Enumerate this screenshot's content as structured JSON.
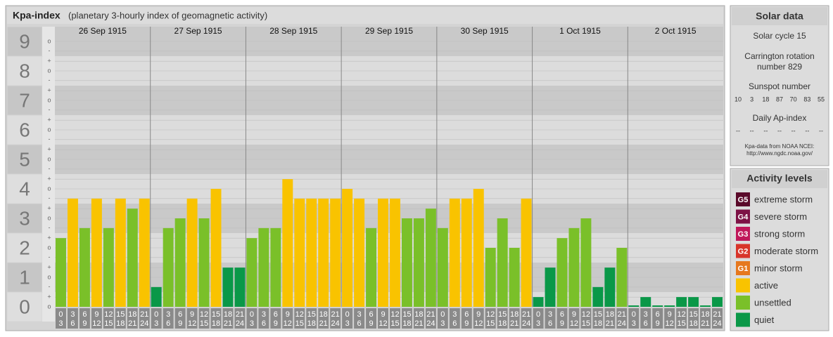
{
  "chart_data": {
    "type": "bar",
    "title": "Kpa-index",
    "subtitle": "(planetary 3-hourly index of geomagnetic activity)",
    "ylim": [
      0,
      9.5
    ],
    "yticks": [
      0,
      1,
      2,
      3,
      4,
      5,
      6,
      7,
      8,
      9
    ],
    "subticks": [
      {
        "value": 0,
        "label": "o"
      },
      {
        "value": 0.33,
        "label": "+"
      },
      {
        "value": 0.67,
        "label": "-"
      },
      {
        "value": 1,
        "label": "o"
      },
      {
        "value": 1.33,
        "label": "+"
      },
      {
        "value": 1.67,
        "label": "-"
      },
      {
        "value": 2,
        "label": "o"
      },
      {
        "value": 2.33,
        "label": "+"
      },
      {
        "value": 2.67,
        "label": "-"
      },
      {
        "value": 3,
        "label": "o"
      },
      {
        "value": 3.33,
        "label": "+"
      },
      {
        "value": 3.67,
        "label": "-"
      },
      {
        "value": 4,
        "label": "o"
      },
      {
        "value": 4.33,
        "label": "+"
      },
      {
        "value": 4.67,
        "label": "-"
      },
      {
        "value": 5,
        "label": "o"
      },
      {
        "value": 5.33,
        "label": "+"
      },
      {
        "value": 5.67,
        "label": "-"
      },
      {
        "value": 6,
        "label": "o"
      },
      {
        "value": 6.33,
        "label": "+"
      },
      {
        "value": 6.67,
        "label": "-"
      },
      {
        "value": 7,
        "label": "o"
      },
      {
        "value": 7.33,
        "label": "+"
      },
      {
        "value": 7.67,
        "label": "-"
      },
      {
        "value": 8,
        "label": "o"
      },
      {
        "value": 8.33,
        "label": "+"
      },
      {
        "value": 8.67,
        "label": "-"
      },
      {
        "value": 9,
        "label": "o"
      }
    ],
    "hour_bins": [
      0,
      3,
      6,
      9,
      12,
      15,
      18,
      21,
      24
    ],
    "grid": true,
    "days": [
      {
        "label": "26 Sep 1915",
        "values": [
          2.33,
          3.67,
          2.67,
          3.67,
          2.67,
          3.67,
          3.33,
          3.67
        ],
        "colors": [
          "#7ac029",
          "#f9c300",
          "#7ac029",
          "#f9c300",
          "#7ac029",
          "#f9c300",
          "#7ac029",
          "#f9c300"
        ]
      },
      {
        "label": "27 Sep 1915",
        "values": [
          0.67,
          2.67,
          3,
          3.67,
          3,
          4,
          1.33,
          1.33
        ],
        "colors": [
          "#0a9848",
          "#7ac029",
          "#7ac029",
          "#f9c300",
          "#7ac029",
          "#f9c300",
          "#0a9848",
          "#0a9848"
        ]
      },
      {
        "label": "28 Sep 1915",
        "values": [
          2.33,
          2.67,
          2.67,
          4.33,
          3.67,
          3.67,
          3.67,
          3.67
        ],
        "colors": [
          "#7ac029",
          "#7ac029",
          "#7ac029",
          "#f9c300",
          "#f9c300",
          "#f9c300",
          "#f9c300",
          "#f9c300"
        ]
      },
      {
        "label": "29 Sep 1915",
        "values": [
          4,
          3.67,
          2.67,
          3.67,
          3.67,
          3,
          3,
          3.33
        ],
        "colors": [
          "#f9c300",
          "#f9c300",
          "#7ac029",
          "#f9c300",
          "#f9c300",
          "#7ac029",
          "#7ac029",
          "#7ac029"
        ]
      },
      {
        "label": "30 Sep 1915",
        "values": [
          2.67,
          3.67,
          3.67,
          4,
          2,
          3,
          2,
          3.67
        ],
        "colors": [
          "#7ac029",
          "#f9c300",
          "#f9c300",
          "#f9c300",
          "#7ac029",
          "#7ac029",
          "#7ac029",
          "#f9c300"
        ]
      },
      {
        "label": "1 Oct 1915",
        "values": [
          0.33,
          1.33,
          2.33,
          2.67,
          3,
          0.67,
          1.33,
          2
        ],
        "colors": [
          "#0a9848",
          "#0a9848",
          "#7ac029",
          "#7ac029",
          "#7ac029",
          "#0a9848",
          "#0a9848",
          "#7ac029"
        ]
      },
      {
        "label": "2 Oct 1915",
        "values": [
          0,
          0.33,
          0,
          0,
          0.33,
          0.33,
          0,
          0.33
        ],
        "colors": [
          "#0a9848",
          "#0a9848",
          "#0a9848",
          "#0a9848",
          "#0a9848",
          "#0a9848",
          "#0a9848",
          "#0a9848"
        ]
      }
    ]
  },
  "solar_data": {
    "title": "Solar data",
    "cycle": "Solar cycle 15",
    "carrington": [
      "Carrington rotation",
      "number 829"
    ],
    "sunspot_label": "Sunspot number",
    "sunspot": [
      10,
      3,
      18,
      87,
      70,
      83,
      55
    ],
    "ap_label": "Daily Ap-index",
    "ap": [
      "--",
      "--",
      "--",
      "--",
      "--",
      "--",
      "--"
    ],
    "source": [
      "Kpa-data from NOAA NCEI:",
      "http://www.ngdc.noaa.gov/"
    ]
  },
  "activity": {
    "title": "Activity levels",
    "items": [
      {
        "badge": "G5",
        "label": "extreme storm",
        "color": "#5a0a2a"
      },
      {
        "badge": "G4",
        "label": "severe storm",
        "color": "#7d1245"
      },
      {
        "badge": "G3",
        "label": "strong storm",
        "color": "#c0185a"
      },
      {
        "badge": "G2",
        "label": "moderate storm",
        "color": "#d8352a"
      },
      {
        "badge": "G1",
        "label": "minor storm",
        "color": "#e6781e"
      },
      {
        "label": "active",
        "color": "#f9c300"
      },
      {
        "label": "unsettled",
        "color": "#7ac029"
      },
      {
        "label": "quiet",
        "color": "#0a9848"
      }
    ]
  }
}
